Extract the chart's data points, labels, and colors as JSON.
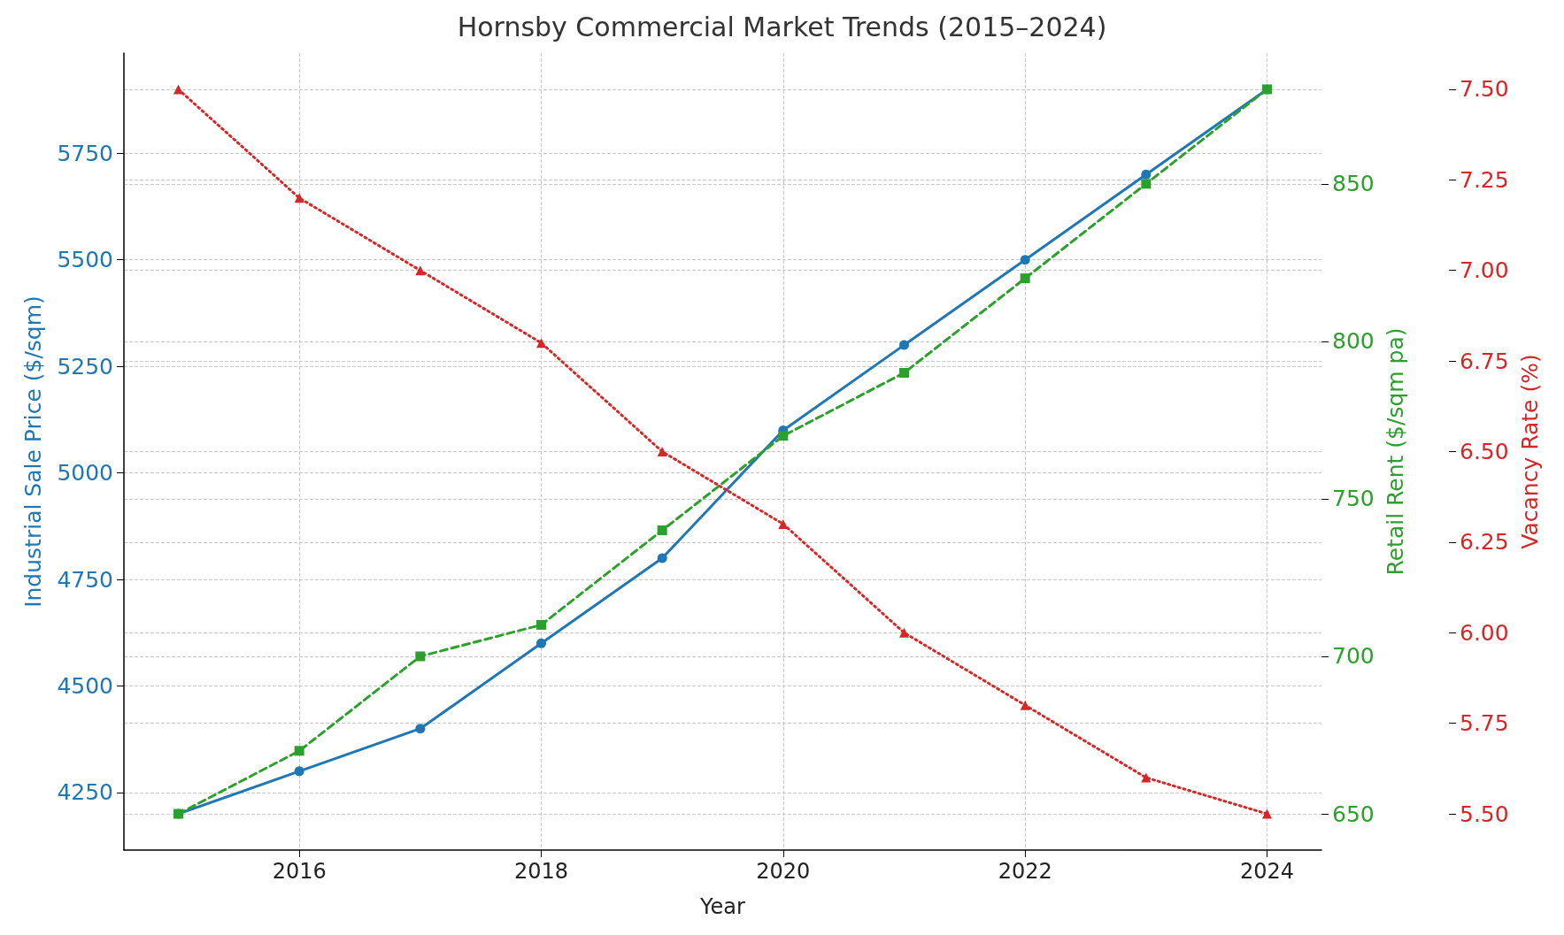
{
  "chart_data": {
    "type": "line",
    "title": "Hornsby Commercial Market Trends (2015–2024)",
    "xlabel": "Year",
    "ylabel": "Industrial Sale Price ($/sqm)",
    "y2label": "Retail Rent ($/sqm pa)",
    "y3label": "Vacancy Rate (%)",
    "x": [
      2015,
      2016,
      2017,
      2018,
      2019,
      2020,
      2021,
      2022,
      2023,
      2024
    ],
    "xlim": [
      2014.55,
      2024.45
    ],
    "xticks": [
      2016,
      2018,
      2020,
      2022,
      2024
    ],
    "ylim": [
      4115,
      5985
    ],
    "yticks": [
      4250,
      4500,
      4750,
      5000,
      5250,
      5500,
      5750
    ],
    "y2lim": [
      638.5,
      891.5
    ],
    "y2ticks": [
      650,
      700,
      750,
      800,
      850
    ],
    "y3lim": [
      5.4,
      7.6
    ],
    "y3ticks": [
      {
        "value": 5.5,
        "label": "5.50"
      },
      {
        "value": 5.75,
        "label": "5.75"
      },
      {
        "value": 6,
        "label": "6.00"
      },
      {
        "value": 6.25,
        "label": "6.25"
      },
      {
        "value": 6.5,
        "label": "6.50"
      },
      {
        "value": 6.75,
        "label": "6.75"
      },
      {
        "value": 7,
        "label": "7.00"
      },
      {
        "value": 7.25,
        "label": "7.25"
      },
      {
        "value": 7.5,
        "label": "7.50"
      }
    ],
    "grid": true,
    "series": [
      {
        "color": "#1f77b4",
        "marker": "circle",
        "line_style": "solid",
        "values": [
          4200,
          4300,
          4400,
          4600,
          4800,
          5100,
          5300,
          5500,
          5700,
          5900
        ]
      },
      {
        "color": "#2ca02c",
        "marker": "square",
        "line_style": "dashed",
        "axis": "y2",
        "values": [
          650,
          670,
          700,
          710,
          740,
          770,
          790,
          820,
          850,
          880
        ]
      },
      {
        "color": "#d62728",
        "marker": "triangle",
        "line_style": "dotted",
        "axis": "y3",
        "values": [
          7.5,
          7.2,
          7.0,
          6.8,
          6.5,
          6.3,
          6.0,
          5.8,
          5.6,
          5.5
        ]
      }
    ]
  }
}
